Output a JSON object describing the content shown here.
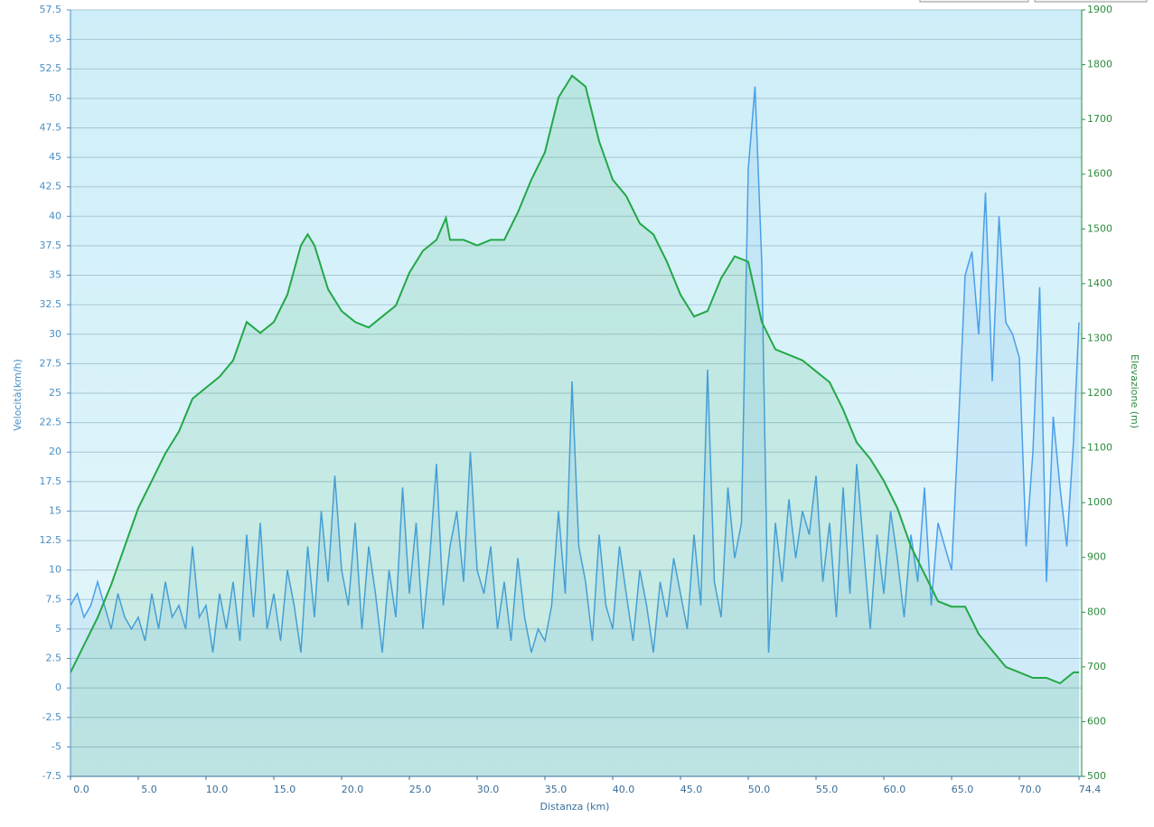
{
  "chart_data": {
    "type": "line",
    "x_label": "Distanza  (km)",
    "y_label": "Velocità(km/h)",
    "y2_label": "Elevazione (m)",
    "xlim": [
      0,
      74.6
    ],
    "xticks": [
      {
        "value": 0,
        "label": "0.0"
      },
      {
        "value": 5,
        "label": "5.0"
      },
      {
        "value": 10,
        "label": "10.0"
      },
      {
        "value": 15,
        "label": "15.0"
      },
      {
        "value": 20,
        "label": "20.0"
      },
      {
        "value": 25,
        "label": "25.0"
      },
      {
        "value": 30,
        "label": "30.0"
      },
      {
        "value": 35,
        "label": "35.0"
      },
      {
        "value": 40,
        "label": "40.0"
      },
      {
        "value": 45,
        "label": "45.0"
      },
      {
        "value": 50,
        "label": "50.0"
      },
      {
        "value": 55,
        "label": "55.0"
      },
      {
        "value": 60,
        "label": "60.0"
      },
      {
        "value": 65,
        "label": "65.0"
      },
      {
        "value": 70,
        "label": "70.0"
      },
      74.4
    ],
    "ylim": [
      -7.5,
      57.5
    ],
    "yticks": [
      -7.5,
      -5,
      -2.5,
      0,
      2.5,
      5,
      7.5,
      10,
      12.5,
      15,
      17.5,
      20,
      22.5,
      25,
      27.5,
      30,
      32.5,
      35,
      37.5,
      40,
      42.5,
      45,
      47.5,
      50,
      52.5,
      55,
      57.5
    ],
    "y2lim": [
      500,
      1900
    ],
    "y2ticks": [
      500,
      600,
      700,
      800,
      900,
      1000,
      1100,
      1200,
      1300,
      1400,
      1500,
      1600,
      1700,
      1800,
      1900
    ],
    "grid": true,
    "series": [
      {
        "color": "#4a9fe8",
        "x": [
          0,
          0.5,
          1,
          1.5,
          2,
          2.5,
          3,
          3.5,
          4,
          4.5,
          5,
          5.5,
          6,
          6.5,
          7,
          7.5,
          8,
          8.5,
          9,
          9.5,
          10,
          10.5,
          11,
          11.5,
          12,
          12.5,
          13,
          13.5,
          14,
          14.5,
          15,
          15.5,
          16,
          16.5,
          17,
          17.5,
          18,
          18.5,
          19,
          19.5,
          20,
          20.5,
          21,
          21.5,
          22,
          22.5,
          23,
          23.5,
          24,
          24.5,
          25,
          25.5,
          26,
          26.5,
          27,
          27.5,
          28,
          28.5,
          29,
          29.5,
          30,
          30.5,
          31,
          31.5,
          32,
          32.5,
          33,
          33.5,
          34,
          34.5,
          35,
          35.5,
          36,
          36.5,
          37,
          37.5,
          38,
          38.5,
          39,
          39.5,
          40,
          40.5,
          41,
          41.5,
          42,
          42.5,
          43,
          43.5,
          44,
          44.5,
          45,
          45.5,
          46,
          46.5,
          47,
          47.5,
          48,
          48.5,
          49,
          49.5,
          50,
          50.5,
          51,
          51.5,
          52,
          52.5,
          53,
          53.5,
          54,
          54.5,
          55,
          55.5,
          56,
          56.5,
          57,
          57.5,
          58,
          58.5,
          59,
          59.5,
          60,
          60.5,
          61,
          61.5,
          62,
          62.5,
          63,
          63.5,
          64,
          64.5,
          65,
          65.5,
          66,
          66.5,
          67,
          67.5,
          68,
          68.5,
          69,
          69.5,
          70,
          70.5,
          71,
          71.5,
          72,
          72.5,
          73,
          73.5,
          74,
          74.4
        ],
        "values": [
          7,
          8,
          6,
          7,
          9,
          7,
          5,
          8,
          6,
          5,
          6,
          4,
          8,
          5,
          9,
          6,
          7,
          5,
          12,
          6,
          7,
          3,
          8,
          5,
          9,
          4,
          13,
          6,
          14,
          5,
          8,
          4,
          10,
          7,
          3,
          12,
          6,
          15,
          9,
          18,
          10,
          7,
          14,
          5,
          12,
          8,
          3,
          10,
          6,
          17,
          8,
          14,
          5,
          11,
          19,
          7,
          12,
          15,
          9,
          20,
          10,
          8,
          12,
          5,
          9,
          4,
          11,
          6,
          3,
          5,
          4,
          7,
          15,
          8,
          26,
          12,
          9,
          4,
          13,
          7,
          5,
          12,
          8,
          4,
          10,
          7,
          3,
          9,
          6,
          11,
          8,
          5,
          13,
          7,
          27,
          9,
          6,
          17,
          11,
          14,
          44,
          51,
          36,
          3,
          14,
          9,
          16,
          11,
          15,
          13,
          18,
          9,
          14,
          6,
          17,
          8,
          19,
          12,
          5,
          13,
          8,
          15,
          11,
          6,
          13,
          9,
          17,
          7,
          14,
          12,
          10,
          22,
          35,
          37,
          30,
          42,
          26,
          40,
          31,
          30,
          28,
          12,
          20,
          34,
          9,
          23,
          17,
          12,
          21,
          31
        ]
      },
      {
        "color": "#22a846",
        "axis": "y2",
        "x": [
          0,
          1,
          2,
          3,
          4,
          5,
          6,
          7,
          8,
          9,
          10,
          11,
          12,
          13,
          14,
          15,
          16,
          17,
          17.5,
          18,
          19,
          20,
          21,
          22,
          23,
          24,
          25,
          26,
          27,
          27.7,
          28,
          29,
          30,
          31,
          32,
          33,
          34,
          35,
          36,
          37,
          38,
          39,
          40,
          41,
          42,
          43,
          44,
          45,
          46,
          47,
          48,
          49,
          50,
          51,
          52,
          53,
          54,
          55,
          56,
          57,
          58,
          59,
          60,
          61,
          62,
          63,
          64,
          65,
          66,
          67,
          68,
          69,
          70,
          71,
          72,
          73,
          74,
          74.4
        ],
        "values": [
          690,
          740,
          790,
          850,
          920,
          990,
          1040,
          1090,
          1130,
          1190,
          1210,
          1230,
          1260,
          1330,
          1310,
          1330,
          1380,
          1470,
          1490,
          1470,
          1390,
          1350,
          1330,
          1320,
          1340,
          1360,
          1420,
          1460,
          1480,
          1520,
          1480,
          1480,
          1470,
          1480,
          1480,
          1530,
          1590,
          1640,
          1740,
          1780,
          1760,
          1660,
          1590,
          1560,
          1510,
          1490,
          1440,
          1380,
          1340,
          1350,
          1410,
          1450,
          1440,
          1330,
          1280,
          1270,
          1260,
          1240,
          1220,
          1170,
          1110,
          1080,
          1040,
          990,
          920,
          870,
          820,
          810,
          810,
          760,
          730,
          700,
          690,
          680,
          680,
          670,
          690,
          690
        ]
      }
    ]
  }
}
